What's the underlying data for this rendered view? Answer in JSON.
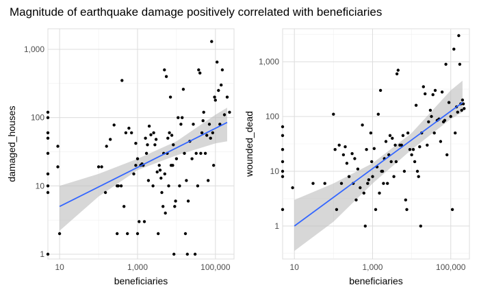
{
  "title": "Magnitude of earthquake damage positively correlated with beneficiaries",
  "colors": {
    "points": "#000000",
    "fit_line": "#3366ff",
    "ribbon": "#bdbdbd",
    "grid": "#dcdcdc"
  },
  "chart_data": [
    {
      "type": "scatter",
      "xlabel": "beneficiaries",
      "ylabel": "damaged_houses",
      "x_scale": "log10",
      "y_scale": "log10",
      "xlim": [
        5,
        300000
      ],
      "ylim": [
        0.85,
        2000
      ],
      "x_ticks": [
        10,
        1000,
        100000
      ],
      "x_tick_labels": [
        "10",
        "1,000",
        "100,000"
      ],
      "y_ticks": [
        1,
        10,
        100,
        1000
      ],
      "y_tick_labels": [
        "1",
        "10",
        "100",
        "1,000"
      ],
      "grid": true,
      "fit": {
        "x0": 10,
        "y0": 5,
        "x1": 200000,
        "y1": 85,
        "lower": [
          [
            10,
            2.2
          ],
          [
            100,
            7
          ],
          [
            1000,
            17
          ],
          [
            10000,
            28
          ],
          [
            100000,
            42
          ],
          [
            200000,
            45
          ]
        ],
        "upper": [
          [
            10,
            10
          ],
          [
            100,
            15
          ],
          [
            1000,
            25
          ],
          [
            10000,
            45
          ],
          [
            100000,
            110
          ],
          [
            200000,
            140
          ]
        ]
      },
      "points": [
        [
          5,
          120
        ],
        [
          5,
          100
        ],
        [
          5,
          60
        ],
        [
          5,
          50
        ],
        [
          5,
          30
        ],
        [
          5,
          15
        ],
        [
          5,
          10
        ],
        [
          5,
          8
        ],
        [
          5,
          1
        ],
        [
          9,
          38
        ],
        [
          9,
          19
        ],
        [
          10,
          2
        ],
        [
          100,
          19
        ],
        [
          120,
          19
        ],
        [
          150,
          8
        ],
        [
          160,
          38
        ],
        [
          200,
          48
        ],
        [
          250,
          78
        ],
        [
          300,
          10
        ],
        [
          300,
          2
        ],
        [
          320,
          10
        ],
        [
          380,
          10
        ],
        [
          400,
          350
        ],
        [
          450,
          5
        ],
        [
          500,
          60
        ],
        [
          550,
          2
        ],
        [
          600,
          70
        ],
        [
          700,
          60
        ],
        [
          800,
          15
        ],
        [
          900,
          42
        ],
        [
          900,
          20
        ],
        [
          1000,
          25
        ],
        [
          1000,
          2
        ],
        [
          1100,
          3
        ],
        [
          1200,
          20
        ],
        [
          1300,
          21
        ],
        [
          1400,
          20
        ],
        [
          1500,
          3
        ],
        [
          1600,
          50
        ],
        [
          1700,
          30
        ],
        [
          1800,
          40
        ],
        [
          1900,
          12
        ],
        [
          2000,
          75
        ],
        [
          2200,
          56
        ],
        [
          2500,
          10
        ],
        [
          2600,
          60
        ],
        [
          2800,
          40
        ],
        [
          3000,
          48
        ],
        [
          3200,
          16
        ],
        [
          3400,
          2
        ],
        [
          3600,
          20
        ],
        [
          3800,
          17
        ],
        [
          4000,
          13
        ],
        [
          4200,
          8
        ],
        [
          4500,
          5
        ],
        [
          4700,
          30
        ],
        [
          4900,
          500
        ],
        [
          5000,
          15
        ],
        [
          5200,
          4
        ],
        [
          5500,
          400
        ],
        [
          5800,
          30
        ],
        [
          6000,
          50
        ],
        [
          6300,
          10
        ],
        [
          6600,
          60
        ],
        [
          7000,
          200
        ],
        [
          7300,
          20
        ],
        [
          7600,
          55
        ],
        [
          8000,
          20
        ],
        [
          8300,
          40
        ],
        [
          8600,
          1
        ],
        [
          9000,
          5
        ],
        [
          9500,
          6
        ],
        [
          10000,
          25
        ],
        [
          11000,
          100
        ],
        [
          12000,
          10
        ],
        [
          13000,
          80
        ],
        [
          14000,
          100
        ],
        [
          15000,
          260
        ],
        [
          16000,
          30
        ],
        [
          17000,
          2
        ],
        [
          18000,
          12
        ],
        [
          19000,
          1
        ],
        [
          20000,
          6
        ],
        [
          22000,
          45
        ],
        [
          25000,
          25
        ],
        [
          27000,
          80
        ],
        [
          30000,
          1
        ],
        [
          32000,
          30
        ],
        [
          35000,
          10
        ],
        [
          37000,
          500
        ],
        [
          40000,
          450
        ],
        [
          42000,
          30
        ],
        [
          45000,
          60
        ],
        [
          48000,
          90
        ],
        [
          50000,
          120
        ],
        [
          55000,
          30
        ],
        [
          60000,
          55
        ],
        [
          65000,
          12
        ],
        [
          70000,
          80
        ],
        [
          75000,
          50
        ],
        [
          80000,
          1300
        ],
        [
          85000,
          60
        ],
        [
          90000,
          20
        ],
        [
          95000,
          200
        ],
        [
          100000,
          180
        ],
        [
          110000,
          650
        ],
        [
          120000,
          250
        ],
        [
          130000,
          80
        ],
        [
          140000,
          300
        ],
        [
          150000,
          500
        ],
        [
          170000,
          110
        ],
        [
          200000,
          200
        ],
        [
          230000,
          120
        ]
      ]
    },
    {
      "type": "scatter",
      "xlabel": "beneficiaries",
      "ylabel": "wounded_dead",
      "x_scale": "log10",
      "y_scale": "log10",
      "xlim": [
        5,
        300000
      ],
      "ylim": [
        0.25,
        4000
      ],
      "x_ticks": [
        10,
        1000,
        100000
      ],
      "x_tick_labels": [
        "10",
        "1,000",
        "100,000"
      ],
      "y_ticks": [
        1,
        10,
        100,
        1000
      ],
      "y_tick_labels": [
        "1",
        "10",
        "100",
        "1,000"
      ],
      "grid": true,
      "fit": {
        "x0": 10,
        "y0": 1,
        "x1": 200000,
        "y1": 180,
        "lower": [
          [
            10,
            0.35
          ],
          [
            100,
            1.2
          ],
          [
            1000,
            6
          ],
          [
            10000,
            25
          ],
          [
            100000,
            90
          ],
          [
            200000,
            120
          ]
        ],
        "upper": [
          [
            10,
            3
          ],
          [
            100,
            6
          ],
          [
            1000,
            14
          ],
          [
            10000,
            50
          ],
          [
            100000,
            300
          ],
          [
            200000,
            450
          ]
        ]
      },
      "points": [
        [
          5,
          65
        ],
        [
          5,
          45
        ],
        [
          5,
          25
        ],
        [
          5,
          15
        ],
        [
          5,
          10
        ],
        [
          5,
          8
        ],
        [
          5,
          2
        ],
        [
          9,
          5
        ],
        [
          30,
          6
        ],
        [
          60,
          6
        ],
        [
          100,
          110
        ],
        [
          110,
          25
        ],
        [
          120,
          2
        ],
        [
          140,
          30
        ],
        [
          160,
          6
        ],
        [
          180,
          20
        ],
        [
          200,
          28
        ],
        [
          220,
          14
        ],
        [
          250,
          8
        ],
        [
          300,
          21
        ],
        [
          320,
          6
        ],
        [
          350,
          17
        ],
        [
          380,
          3
        ],
        [
          420,
          11
        ],
        [
          480,
          5
        ],
        [
          550,
          70
        ],
        [
          600,
          4
        ],
        [
          650,
          1
        ],
        [
          700,
          25
        ],
        [
          750,
          6
        ],
        [
          800,
          7
        ],
        [
          900,
          50
        ],
        [
          950,
          15
        ],
        [
          1000,
          8
        ],
        [
          1100,
          26
        ],
        [
          1200,
          2
        ],
        [
          1300,
          12
        ],
        [
          1400,
          110
        ],
        [
          1500,
          4
        ],
        [
          1600,
          300
        ],
        [
          1700,
          10
        ],
        [
          1800,
          10
        ],
        [
          1900,
          6
        ],
        [
          2000,
          17
        ],
        [
          2200,
          35
        ],
        [
          2400,
          6
        ],
        [
          2600,
          20
        ],
        [
          2800,
          45
        ],
        [
          3000,
          15
        ],
        [
          3200,
          40
        ],
        [
          3500,
          8
        ],
        [
          3800,
          30
        ],
        [
          4000,
          15
        ],
        [
          4200,
          600
        ],
        [
          4500,
          700
        ],
        [
          5000,
          30
        ],
        [
          5500,
          30
        ],
        [
          6000,
          45
        ],
        [
          6500,
          10
        ],
        [
          7000,
          3
        ],
        [
          7500,
          2
        ],
        [
          8000,
          50
        ],
        [
          9000,
          25
        ],
        [
          10000,
          20
        ],
        [
          11000,
          25
        ],
        [
          12000,
          15
        ],
        [
          13000,
          160
        ],
        [
          14000,
          10
        ],
        [
          15000,
          8
        ],
        [
          16000,
          28
        ],
        [
          17000,
          1
        ],
        [
          18000,
          50
        ],
        [
          20000,
          350
        ],
        [
          22000,
          260
        ],
        [
          25000,
          30
        ],
        [
          27000,
          80
        ],
        [
          30000,
          130
        ],
        [
          32000,
          100
        ],
        [
          35000,
          250
        ],
        [
          38000,
          50
        ],
        [
          40000,
          300
        ],
        [
          45000,
          85
        ],
        [
          50000,
          90
        ],
        [
          55000,
          35
        ],
        [
          60000,
          280
        ],
        [
          65000,
          80
        ],
        [
          70000,
          85
        ],
        [
          75000,
          900
        ],
        [
          80000,
          20
        ],
        [
          90000,
          180
        ],
        [
          100000,
          100
        ],
        [
          110000,
          2
        ],
        [
          120000,
          1700
        ],
        [
          130000,
          50
        ],
        [
          140000,
          150
        ],
        [
          150000,
          120
        ],
        [
          160000,
          3000
        ],
        [
          170000,
          900
        ],
        [
          180000,
          170
        ],
        [
          190000,
          130
        ],
        [
          200000,
          200
        ],
        [
          210000,
          170
        ],
        [
          220000,
          140
        ]
      ]
    }
  ]
}
